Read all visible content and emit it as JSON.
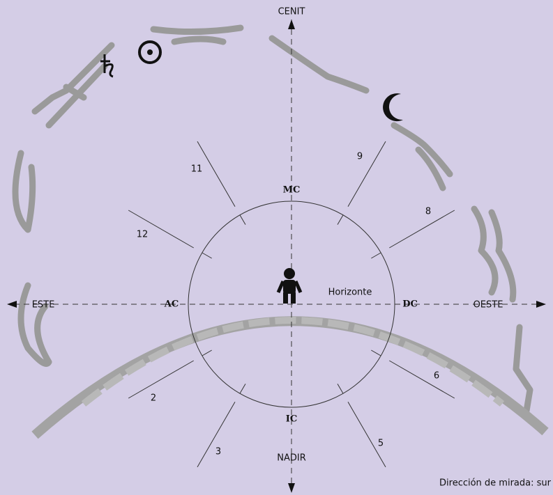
{
  "directions": {
    "top": "CENIT",
    "bottom": "NADIR",
    "left": "ESTE",
    "right": "OESTE"
  },
  "angles": {
    "ac": "AC",
    "dc": "DC",
    "mc": "MC",
    "ic": "IC"
  },
  "horizon": "Horizonte",
  "houses": [
    "11",
    "9",
    "12",
    "8",
    "2",
    "6",
    "3",
    "5"
  ],
  "caption": "Dirección de mirada: sur"
}
